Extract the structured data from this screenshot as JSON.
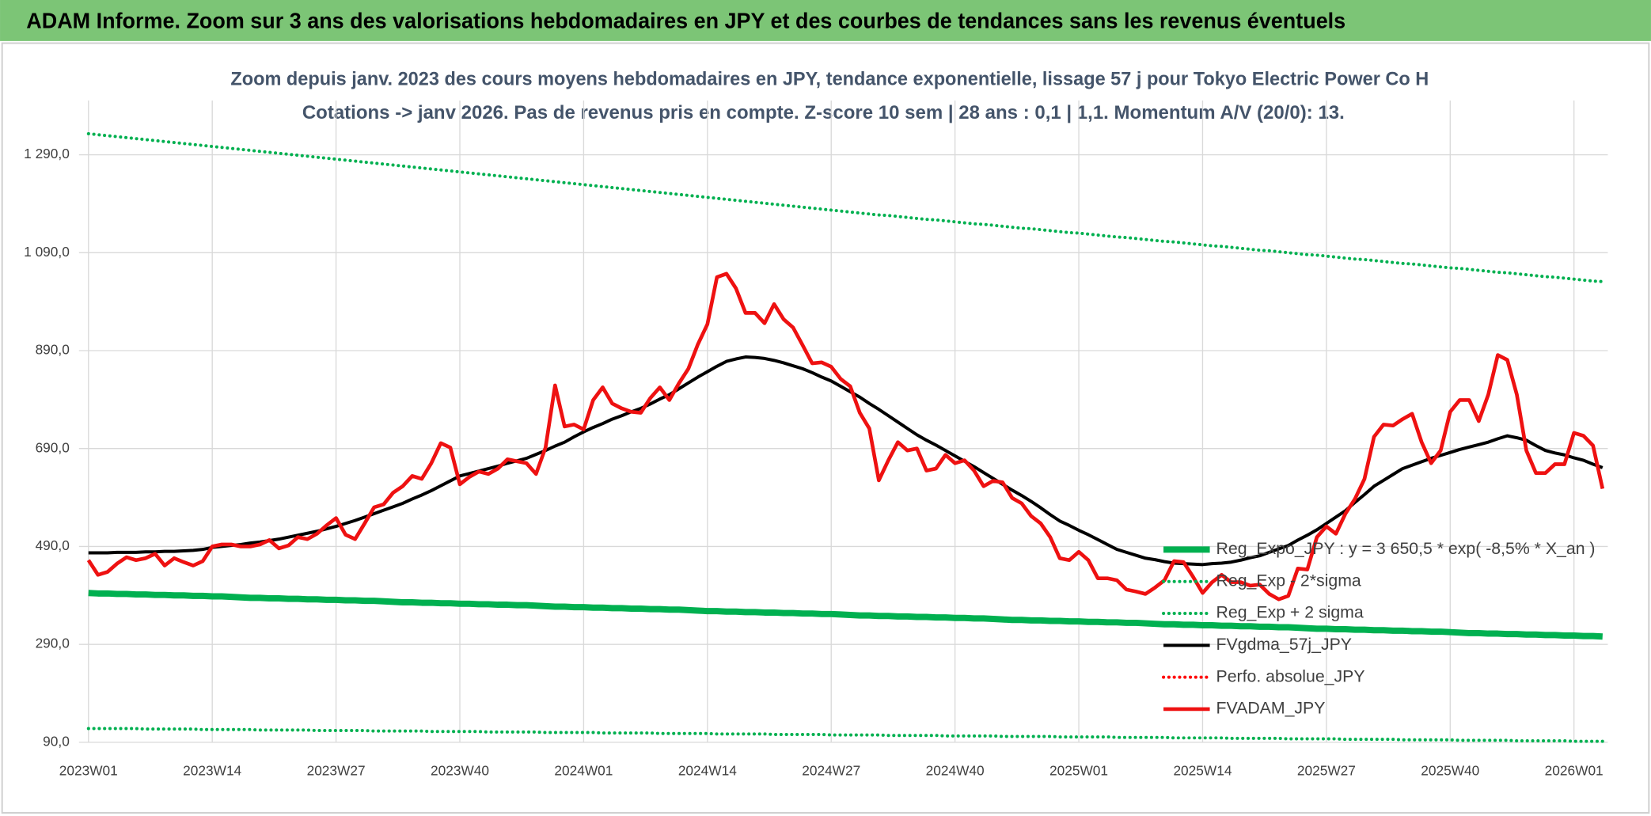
{
  "header": {
    "title": "ADAM Informe. Zoom sur 3 ans des valorisations hebdomadaires en JPY et des courbes de tendances sans les revenus éventuels"
  },
  "chart_data": {
    "type": "line",
    "title": "Zoom depuis janv. 2023 des cours moyens hebdomadaires en JPY, tendance exponentielle, lissage 57 j pour Tokyo Electric Power Co H",
    "subtitle": "Cotations -> janv 2026. Pas de revenus pris en compte. Z-score 10 sem | 28 ans : 0,1 | 1,1. Momentum A/V (20/0): 13.",
    "categories": [
      "2023W01",
      null,
      null,
      null,
      null,
      null,
      null,
      null,
      null,
      null,
      null,
      null,
      null,
      "2023W14",
      null,
      null,
      null,
      null,
      null,
      null,
      null,
      null,
      null,
      null,
      null,
      null,
      "2023W27",
      null,
      null,
      null,
      null,
      null,
      null,
      null,
      null,
      null,
      null,
      null,
      null,
      "2023W40",
      null,
      null,
      null,
      null,
      null,
      null,
      null,
      null,
      null,
      null,
      null,
      null,
      "2024W01",
      null,
      null,
      null,
      null,
      null,
      null,
      null,
      null,
      null,
      null,
      null,
      null,
      "2024W14",
      null,
      null,
      null,
      null,
      null,
      null,
      null,
      null,
      null,
      null,
      null,
      null,
      "2024W27",
      null,
      null,
      null,
      null,
      null,
      null,
      null,
      null,
      null,
      null,
      null,
      null,
      "2024W40",
      null,
      null,
      null,
      null,
      null,
      null,
      null,
      null,
      null,
      null,
      null,
      null,
      "2025W01",
      null,
      null,
      null,
      null,
      null,
      null,
      null,
      null,
      null,
      null,
      null,
      null,
      "2025W14",
      null,
      null,
      null,
      null,
      null,
      null,
      null,
      null,
      null,
      null,
      null,
      null,
      "2025W27",
      null,
      null,
      null,
      null,
      null,
      null,
      null,
      null,
      null,
      null,
      null,
      null,
      "2025W40",
      null,
      null,
      null,
      null,
      null,
      null,
      null,
      null,
      null,
      null,
      null,
      null,
      "2026W01",
      null,
      null,
      null
    ],
    "ylim": [
      90,
      1390
    ],
    "yticks": [
      {
        "value": 90,
        "label": "90,0"
      },
      {
        "value": 290,
        "label": "290,0"
      },
      {
        "value": 490,
        "label": "490,0"
      },
      {
        "value": 690,
        "label": "690,0"
      },
      {
        "value": 890,
        "label": "890,0"
      },
      {
        "value": 1090,
        "label": "1 090,0"
      },
      {
        "value": 1290,
        "label": "1 290,0"
      }
    ],
    "grid": true,
    "legend": "right",
    "series": [
      {
        "name": "Reg_Expo_JPY : y = 3 650,5 * exp( -8,5% *  X_an )",
        "color": "#00b050",
        "line_style": "solid",
        "values": [
          395,
          394,
          394,
          393,
          393,
          392,
          392,
          391,
          391,
          390,
          390,
          389,
          389,
          388,
          388,
          387,
          386,
          385,
          385,
          384,
          384,
          383,
          383,
          382,
          382,
          381,
          381,
          380,
          380,
          379,
          379,
          378,
          377,
          376,
          376,
          375,
          375,
          374,
          374,
          373,
          373,
          372,
          372,
          371,
          371,
          370,
          370,
          369,
          368,
          367,
          367,
          366,
          366,
          365,
          365,
          364,
          364,
          363,
          363,
          362,
          362,
          361,
          361,
          360,
          359,
          358,
          358,
          357,
          357,
          356,
          356,
          355,
          355,
          354,
          354,
          353,
          353,
          352,
          352,
          351,
          350,
          349,
          349,
          348,
          348,
          347,
          347,
          346,
          346,
          345,
          345,
          344,
          344,
          343,
          343,
          342,
          341,
          340,
          340,
          339,
          339,
          338,
          338,
          337,
          337,
          336,
          336,
          335,
          335,
          334,
          334,
          333,
          332,
          331,
          331,
          330,
          330,
          329,
          329,
          328,
          328,
          327,
          327,
          326,
          326,
          325,
          325,
          324,
          323,
          322,
          322,
          321,
          321,
          320,
          320,
          319,
          319,
          318,
          318,
          317,
          317,
          316,
          316,
          315,
          314,
          313,
          313,
          312,
          312,
          311,
          311,
          310,
          310,
          309,
          309,
          308,
          308,
          307,
          307,
          306
        ]
      },
      {
        "name": "Reg_Exp - 2*sigma",
        "color": "#00b050",
        "line_style": "dotted",
        "values": [
          118,
          118,
          118,
          118,
          118,
          118,
          117,
          117,
          117,
          117,
          117,
          117,
          116,
          116,
          116,
          116,
          116,
          116,
          115,
          115,
          115,
          115,
          115,
          115,
          114,
          114,
          114,
          114,
          114,
          114,
          113,
          113,
          113,
          113,
          113,
          113,
          112,
          112,
          112,
          112,
          112,
          112,
          111,
          111,
          111,
          111,
          111,
          111,
          110,
          110,
          110,
          110,
          110,
          110,
          109,
          109,
          109,
          109,
          109,
          109,
          108,
          108,
          108,
          108,
          108,
          108,
          107,
          107,
          107,
          107,
          107,
          107,
          106,
          106,
          106,
          106,
          106,
          106,
          105,
          105,
          105,
          105,
          105,
          105,
          104,
          104,
          104,
          104,
          104,
          104,
          103,
          103,
          103,
          103,
          103,
          103,
          102,
          102,
          102,
          102,
          102,
          102,
          101,
          101,
          101,
          101,
          101,
          101,
          100,
          100,
          100,
          100,
          100,
          100,
          99,
          99,
          99,
          99,
          99,
          99,
          98,
          98,
          98,
          98,
          98,
          98,
          97,
          97,
          97,
          97,
          97,
          97,
          96,
          96,
          96,
          96,
          96,
          96,
          95,
          95,
          95,
          95,
          95,
          95,
          94,
          94,
          94,
          94,
          94,
          94,
          93,
          93,
          93,
          93,
          93,
          93,
          92,
          92,
          92,
          92
        ]
      },
      {
        "name": "Reg_Exp + 2 sigma",
        "color": "#00b050",
        "line_style": "dotted",
        "values": [
          1333,
          1331,
          1329,
          1327,
          1325,
          1323,
          1321,
          1319,
          1317,
          1315,
          1313,
          1311,
          1309,
          1307,
          1305,
          1303,
          1301,
          1299,
          1297,
          1295,
          1293,
          1291,
          1289,
          1287,
          1285,
          1283,
          1281,
          1279,
          1277,
          1275,
          1273,
          1271,
          1269,
          1267,
          1265,
          1263,
          1261,
          1259,
          1257,
          1255,
          1253,
          1251,
          1249,
          1247,
          1245,
          1243,
          1241,
          1239,
          1237,
          1235,
          1233,
          1231,
          1229,
          1227,
          1225,
          1223,
          1221,
          1219,
          1217,
          1215,
          1213,
          1211,
          1209,
          1207,
          1205,
          1203,
          1201,
          1199,
          1197,
          1195,
          1193,
          1191,
          1189,
          1187,
          1185,
          1183,
          1181,
          1179,
          1177,
          1175,
          1173,
          1171,
          1169,
          1167,
          1166,
          1164,
          1162,
          1160,
          1158,
          1157,
          1155,
          1153,
          1151,
          1149,
          1148,
          1146,
          1144,
          1142,
          1140,
          1139,
          1137,
          1135,
          1133,
          1131,
          1130,
          1128,
          1126,
          1124,
          1122,
          1121,
          1119,
          1117,
          1115,
          1113,
          1112,
          1110,
          1108,
          1106,
          1104,
          1103,
          1101,
          1099,
          1097,
          1095,
          1094,
          1092,
          1090,
          1088,
          1086,
          1085,
          1083,
          1081,
          1079,
          1077,
          1076,
          1074,
          1072,
          1070,
          1068,
          1067,
          1065,
          1063,
          1061,
          1059,
          1058,
          1056,
          1054,
          1052,
          1050,
          1049,
          1047,
          1045,
          1043,
          1041,
          1040,
          1038,
          1036,
          1034,
          1032,
          1031
        ]
      },
      {
        "name": "FVgdma_57j_JPY",
        "color": "#000000",
        "line_style": "solid",
        "values": [
          477,
          477,
          477,
          478,
          478,
          478,
          479,
          479,
          480,
          480,
          481,
          482,
          484,
          488,
          490,
          492,
          494,
          497,
          499,
          502,
          505,
          509,
          513,
          517,
          521,
          526,
          531,
          537,
          543,
          550,
          557,
          564,
          571,
          578,
          587,
          595,
          604,
          614,
          624,
          634,
          639,
          644,
          649,
          654,
          660,
          665,
          670,
          678,
          686,
          695,
          703,
          714,
          724,
          733,
          741,
          750,
          757,
          765,
          772,
          781,
          791,
          800,
          812,
          824,
          836,
          847,
          858,
          868,
          873,
          877,
          876,
          874,
          870,
          865,
          859,
          853,
          845,
          836,
          828,
          817,
          806,
          795,
          782,
          770,
          757,
          744,
          731,
          718,
          707,
          697,
          686,
          675,
          664,
          653,
          641,
          629,
          617,
          605,
          594,
          582,
          569,
          555,
          542,
          533,
          523,
          514,
          504,
          494,
          484,
          478,
          472,
          466,
          463,
          459,
          456,
          455,
          454,
          453,
          455,
          456,
          458,
          462,
          467,
          471,
          478,
          485,
          492,
          503,
          513,
          524,
          537,
          550,
          563,
          580,
          596,
          613,
          625,
          637,
          649,
          656,
          663,
          670,
          676,
          682,
          688,
          693,
          698,
          703,
          710,
          716,
          712,
          707,
          696,
          686,
          681,
          677,
          671,
          666,
          658,
          651
        ]
      },
      {
        "name": "Perfo. absolue_JPY",
        "color": "#ff0000",
        "line_style": "dotted"
      },
      {
        "name": "FVADAM_JPY",
        "color": "#ee1111",
        "line_style": "solid",
        "values": [
          462,
          432,
          438,
          455,
          468,
          462,
          466,
          475,
          451,
          466,
          458,
          451,
          460,
          490,
          494,
          494,
          490,
          490,
          494,
          503,
          486,
          492,
          509,
          505,
          516,
          533,
          548,
          514,
          505,
          537,
          570,
          576,
          600,
          613,
          634,
          628,
          660,
          701,
          692,
          617,
          632,
          643,
          638,
          649,
          668,
          664,
          660,
          638,
          692,
          819,
          735,
          739,
          729,
          789,
          815,
          782,
          772,
          765,
          763,
          793,
          815,
          789,
          823,
          853,
          903,
          944,
          1040,
          1047,
          1017,
          967,
          967,
          946,
          985,
          954,
          937,
          901,
          864,
          866,
          857,
          832,
          817,
          763,
          731,
          625,
          666,
          703,
          686,
          690,
          645,
          649,
          677,
          660,
          666,
          645,
          613,
          624,
          621,
          589,
          578,
          552,
          537,
          509,
          466,
          462,
          479,
          462,
          425,
          425,
          421,
          402,
          398,
          393,
          406,
          421,
          460,
          458,
          428,
          395,
          417,
          432,
          417,
          417,
          410,
          412,
          393,
          382,
          389,
          445,
          443,
          509,
          531,
          516,
          557,
          587,
          628,
          714,
          739,
          737,
          750,
          761,
          703,
          660,
          686,
          765,
          789,
          789,
          746,
          800,
          881,
          871,
          800,
          686,
          640,
          640,
          658,
          658,
          722,
          716,
          696,
          608
        ]
      }
    ]
  }
}
